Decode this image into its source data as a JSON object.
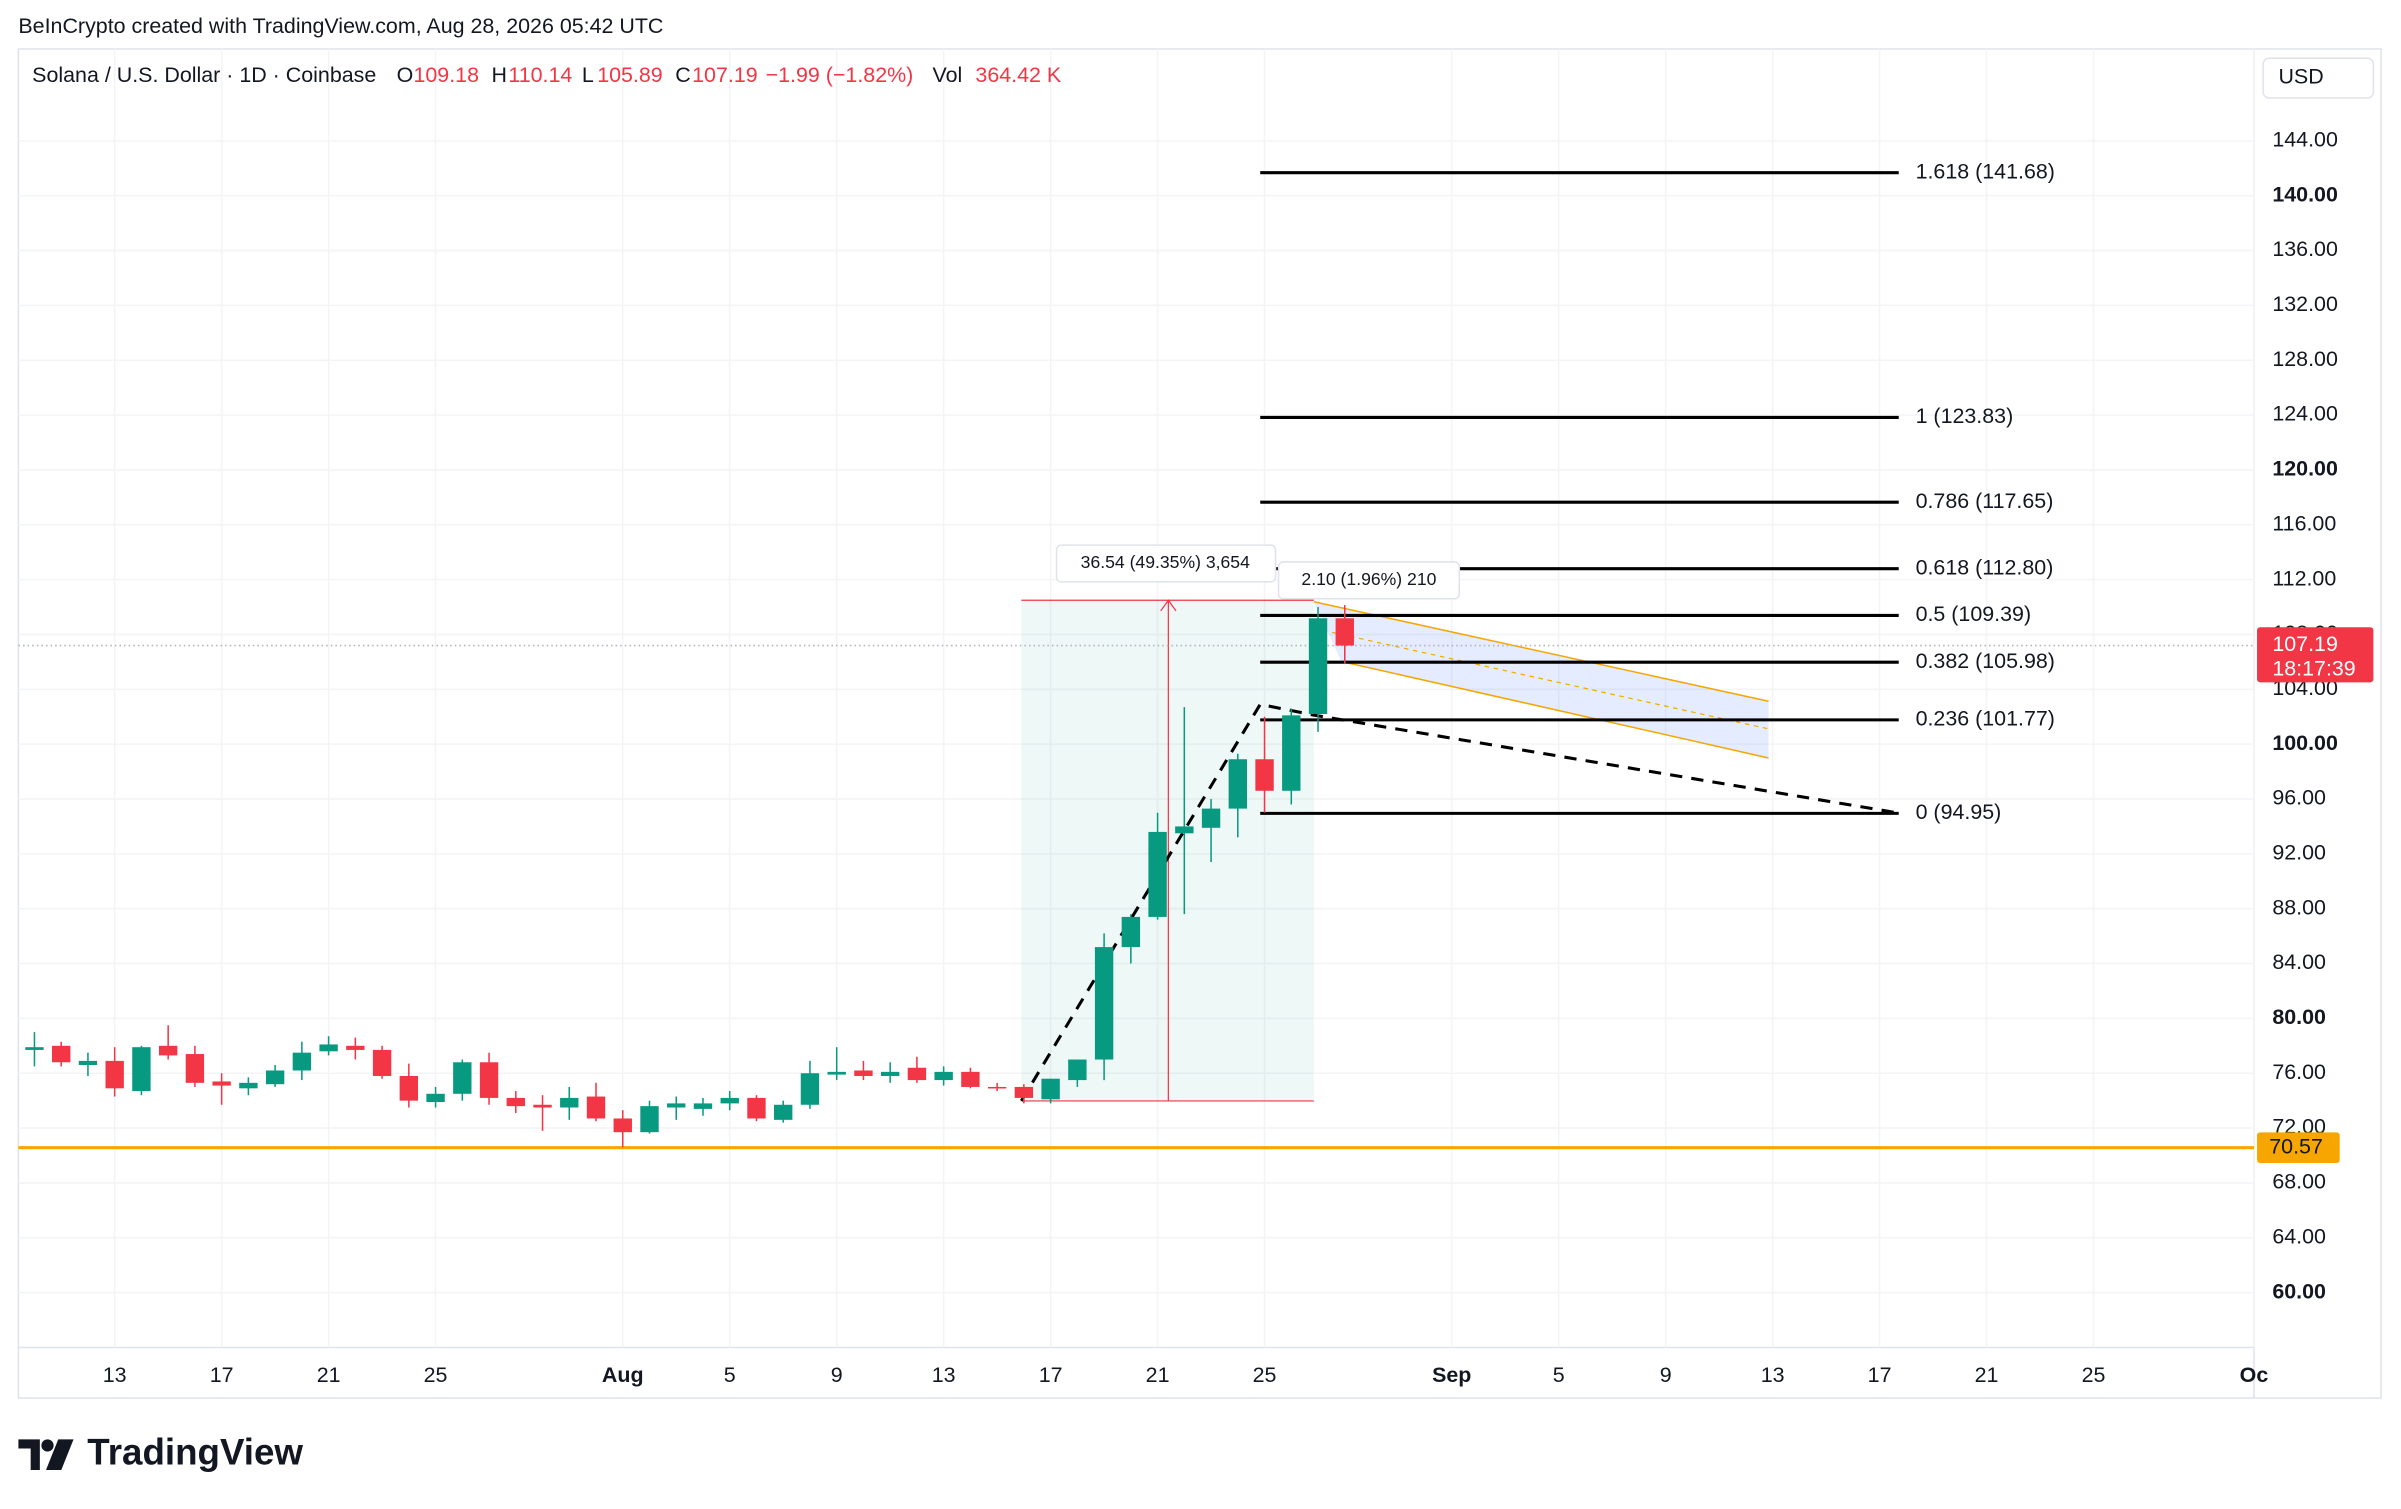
{
  "header": "BeInCrypto created with TradingView.com, Aug 28, 2026 05:42 UTC",
  "footer": "TradingView",
  "chart_data": {
    "type": "candlestick",
    "legend": {
      "symbol": "Solana / U.S. Dollar · 1D · Coinbase",
      "open_label": "O",
      "open": "109.18",
      "high_label": "H",
      "high": "110.14",
      "low_label": "L",
      "low": "105.89",
      "close_label": "C",
      "close": "107.19",
      "change": "−1.99 (−1.82%)",
      "volume_label": "Vol",
      "volume": "364.42 K"
    },
    "currency": "USD",
    "up_color": "#089981",
    "down_color": "#f23645",
    "open": [
      77.7,
      78.0,
      76.6,
      76.9,
      74.7,
      78.0,
      77.4,
      75.4,
      74.9,
      75.2,
      76.2,
      77.6,
      78.0,
      77.7,
      75.8,
      73.9,
      74.5,
      76.8,
      74.2,
      73.7,
      73.5,
      74.3,
      72.7,
      71.7,
      73.5,
      73.4,
      73.8,
      74.2,
      72.6,
      73.7,
      75.9,
      76.2,
      75.8,
      76.4,
      75.5,
      76.1,
      75.0,
      75.0,
      74.1,
      75.5,
      77.0,
      85.2,
      87.4,
      93.5,
      93.9,
      95.3,
      98.9,
      96.6,
      102.2,
      109.18
    ],
    "high": [
      79.0,
      78.3,
      77.5,
      77.9,
      78.0,
      79.5,
      78.0,
      76.0,
      75.7,
      76.6,
      78.3,
      78.7,
      78.6,
      78.0,
      76.7,
      75.0,
      77.0,
      77.5,
      74.7,
      74.4,
      75.0,
      75.3,
      73.3,
      74.0,
      74.3,
      74.2,
      74.7,
      74.4,
      74.0,
      76.9,
      77.9,
      76.9,
      76.8,
      77.2,
      76.5,
      76.4,
      75.3,
      75.2,
      75.6,
      77.0,
      86.2,
      87.6,
      95.0,
      102.7,
      96.0,
      99.3,
      102.0,
      102.6,
      110.0,
      110.14
    ],
    "low": [
      76.5,
      76.5,
      75.8,
      74.3,
      74.4,
      77.0,
      75.0,
      73.7,
      74.4,
      75.0,
      75.5,
      77.3,
      77.0,
      75.6,
      73.5,
      73.5,
      74.0,
      73.7,
      73.1,
      71.8,
      72.6,
      72.5,
      70.6,
      71.6,
      72.6,
      72.9,
      73.3,
      72.5,
      72.4,
      73.4,
      75.5,
      75.5,
      75.3,
      75.3,
      75.1,
      74.9,
      74.7,
      73.8,
      73.8,
      75.0,
      75.5,
      84.0,
      87.2,
      87.6,
      91.4,
      93.2,
      95.0,
      95.6,
      100.9,
      105.89
    ],
    "close": [
      77.9,
      76.8,
      76.9,
      74.9,
      77.9,
      77.3,
      75.3,
      75.1,
      75.3,
      76.2,
      77.5,
      78.1,
      77.7,
      75.8,
      74.0,
      74.5,
      76.8,
      74.2,
      73.6,
      73.5,
      74.2,
      72.7,
      71.7,
      73.6,
      73.8,
      73.8,
      74.2,
      72.7,
      73.7,
      76.0,
      76.1,
      75.8,
      76.1,
      75.5,
      76.1,
      75.0,
      74.9,
      74.2,
      75.6,
      77.0,
      85.2,
      87.4,
      93.6,
      94.0,
      95.3,
      98.9,
      96.6,
      102.1,
      109.18,
      107.19
    ],
    "xlim": [
      -0.6,
      83
    ],
    "xticks": [
      {
        "value": 3,
        "label": "13"
      },
      {
        "value": 7,
        "label": "17"
      },
      {
        "value": 11,
        "label": "21"
      },
      {
        "value": 15,
        "label": "25"
      },
      {
        "value": 22,
        "label": "Aug"
      },
      {
        "value": 26,
        "label": "5"
      },
      {
        "value": 30,
        "label": "9"
      },
      {
        "value": 34,
        "label": "13"
      },
      {
        "value": 38,
        "label": "17"
      },
      {
        "value": 42,
        "label": "21"
      },
      {
        "value": 46,
        "label": "25"
      },
      {
        "value": 53,
        "label": "Sep"
      },
      {
        "value": 57,
        "label": "5"
      },
      {
        "value": 61,
        "label": "9"
      },
      {
        "value": 65,
        "label": "13"
      },
      {
        "value": 69,
        "label": "17"
      },
      {
        "value": 73,
        "label": "21"
      },
      {
        "value": 77,
        "label": "25"
      },
      {
        "value": 83,
        "label": "Oc"
      }
    ],
    "ylim": [
      56.0,
      150.7
    ],
    "yticks": [
      {
        "value": 60,
        "label": "60.00"
      },
      {
        "value": 64,
        "label": "64.00"
      },
      {
        "value": 68,
        "label": "68.00"
      },
      {
        "value": 72,
        "label": "72.00"
      },
      {
        "value": 76,
        "label": "76.00"
      },
      {
        "value": 80,
        "label": "80.00"
      },
      {
        "value": 84,
        "label": "84.00"
      },
      {
        "value": 88,
        "label": "88.00"
      },
      {
        "value": 92,
        "label": "92.00"
      },
      {
        "value": 96,
        "label": "96.00"
      },
      {
        "value": 100,
        "label": "100.00"
      },
      {
        "value": 104,
        "label": "104.00"
      },
      {
        "value": 108,
        "label": "108.00"
      },
      {
        "value": 112,
        "label": "112.00"
      },
      {
        "value": 116,
        "label": "116.00"
      },
      {
        "value": 120,
        "label": "120.00"
      },
      {
        "value": 124,
        "label": "124.00"
      },
      {
        "value": 128,
        "label": "128.00"
      },
      {
        "value": 132,
        "label": "132.00"
      },
      {
        "value": 136,
        "label": "136.00"
      },
      {
        "value": 140,
        "label": "140.00"
      },
      {
        "value": 144,
        "label": "144.00"
      }
    ],
    "grid": true,
    "fib_levels": [
      {
        "value": 141.68,
        "label": "1.618 (141.68)"
      },
      {
        "value": 123.83,
        "label": "1 (123.83)"
      },
      {
        "value": 117.65,
        "label": "0.786 (117.65)"
      },
      {
        "value": 112.8,
        "label": "0.618 (112.80)"
      },
      {
        "value": 109.39,
        "label": "0.5 (109.39)"
      },
      {
        "value": 105.98,
        "label": "0.382 (105.98)"
      },
      {
        "value": 101.77,
        "label": "0.236 (101.77)"
      },
      {
        "value": 94.95,
        "label": "0 (94.95)"
      }
    ],
    "last_price": 107.19,
    "countdown": "18:17:39",
    "support": 70.57,
    "support_color": "#f7a600",
    "measure_main": "36.54 (49.35%) 3,654",
    "measure_small": "2.10 (1.96%) 210"
  }
}
